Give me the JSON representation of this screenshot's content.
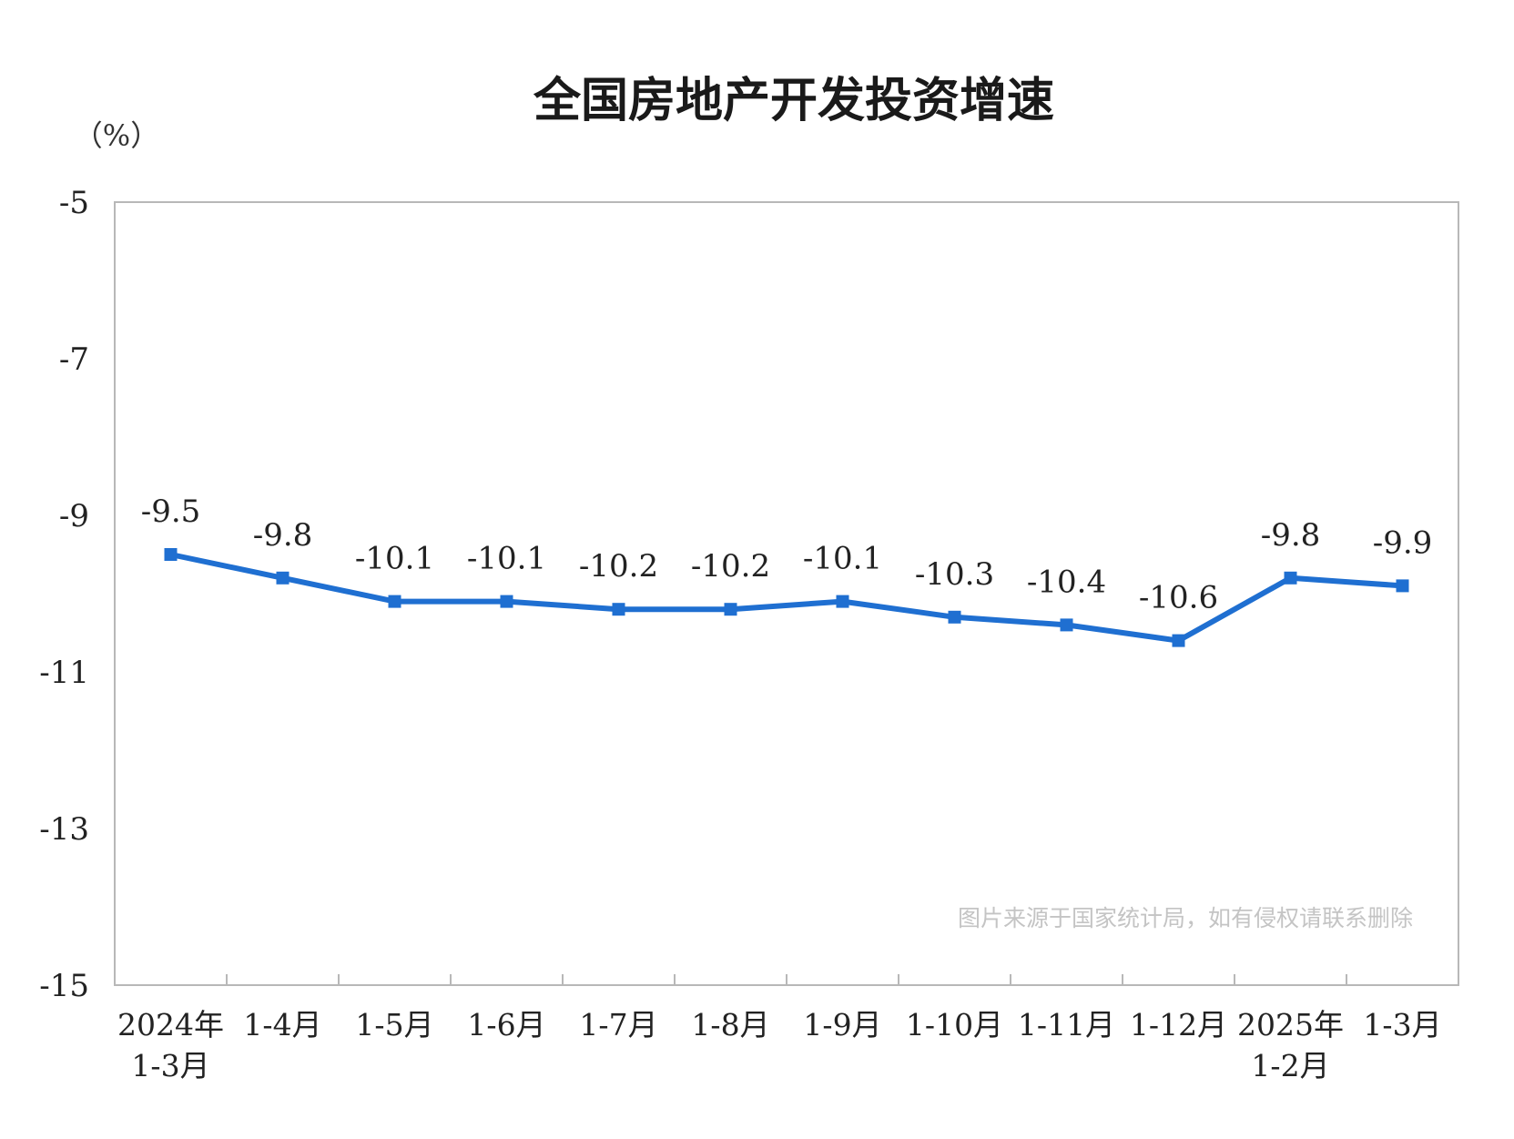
{
  "chart_data": {
    "type": "line",
    "title": "全国房地产开发投资增速",
    "unit_label": "（%）",
    "ylim": [
      -15,
      -5
    ],
    "yticks": [
      -5,
      -7,
      -9,
      -11,
      -13,
      -15
    ],
    "categories": [
      [
        "2024年",
        "1-3月"
      ],
      [
        "1-4月"
      ],
      [
        "1-5月"
      ],
      [
        "1-6月"
      ],
      [
        "1-7月"
      ],
      [
        "1-8月"
      ],
      [
        "1-9月"
      ],
      [
        "1-10月"
      ],
      [
        "1-11月"
      ],
      [
        "1-12月"
      ],
      [
        "2025年",
        "1-2月"
      ],
      [
        "1-3月"
      ]
    ],
    "series": [
      {
        "values": [
          -9.5,
          -9.8,
          -10.1,
          -10.1,
          -10.2,
          -10.2,
          -10.1,
          -10.3,
          -10.4,
          -10.6,
          -9.8,
          -9.9
        ],
        "labels": [
          "-9.5",
          "-9.8",
          "-10.1",
          "-10.1",
          "-10.2",
          "-10.2",
          "-10.1",
          "-10.3",
          "-10.4",
          "-10.6",
          "-9.8",
          "-9.9"
        ],
        "color": "#1f6fd1"
      }
    ],
    "grid": false,
    "legend": "none"
  },
  "watermark": "图片来源于国家统计局，如有侵权请联系删除",
  "colors": {
    "line": "#1f6fd1",
    "frame": "#b8b8b8",
    "watermark": "#c4c4c4"
  }
}
